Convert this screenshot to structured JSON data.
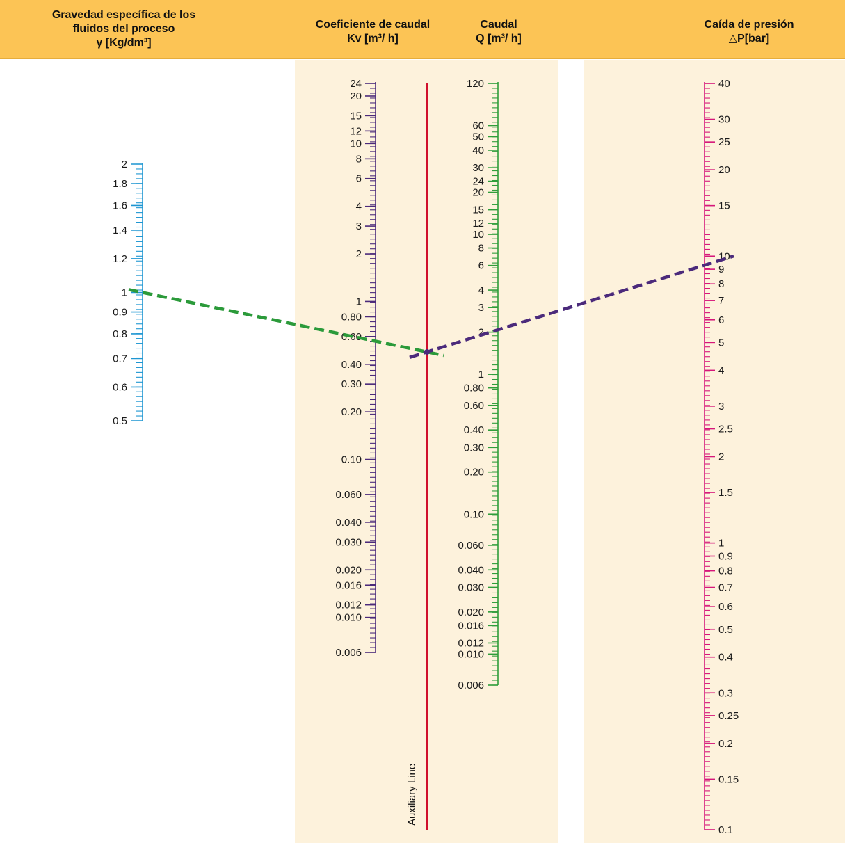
{
  "header": {
    "gravity": {
      "line1": "Gravedad específica de los",
      "line2": "fluidos del proceso",
      "line3": "γ [Kg/dm³]"
    },
    "kv": {
      "line1": "Coeficiente de caudal",
      "line2": "Kv [m³/ h]"
    },
    "flow": {
      "line1": "Caudal",
      "line2": "Q [m³/ h]"
    },
    "pressure": {
      "line1": "Caída de presión",
      "line2": "△P[bar]"
    }
  },
  "auxiliary_line_label": "Auxiliary Line",
  "colors": {
    "header_bg": "#fcc455",
    "panel_bg": "#fdf2dc",
    "gravity_scale": "#1e96d2",
    "kv_scale": "#4b2a7b",
    "flow_scale": "#2e9d3a",
    "pressure_scale": "#d6177a",
    "auxiliary_line": "#d0102c",
    "guide_green": "#2b9a3a",
    "guide_purple": "#4b2a7b"
  },
  "scales": {
    "gravity": {
      "range": [
        0.5,
        2
      ],
      "labels": [
        "2",
        "1.8",
        "1.6",
        "1.4",
        "1.2",
        "1",
        "0.9",
        "0.8",
        "0.7",
        "0.6",
        "0.5"
      ],
      "values": [
        2,
        1.8,
        1.6,
        1.4,
        1.2,
        1,
        0.9,
        0.8,
        0.7,
        0.6,
        0.5
      ]
    },
    "kv": {
      "range": [
        0.006,
        24
      ],
      "labels": [
        "24",
        "20",
        "15",
        "12",
        "10",
        "8",
        "6",
        "4",
        "3",
        "2",
        "1",
        "0.80",
        "0.60",
        "0.40",
        "0.30",
        "0.20",
        "0.10",
        "0.060",
        "0.040",
        "0.030",
        "0.020",
        "0.016",
        "0.012",
        "0.010",
        "0.006"
      ],
      "values": [
        24,
        20,
        15,
        12,
        10,
        8,
        6,
        4,
        3,
        2,
        1,
        0.8,
        0.6,
        0.4,
        0.3,
        0.2,
        0.1,
        0.06,
        0.04,
        0.03,
        0.02,
        0.016,
        0.012,
        0.01,
        0.006
      ]
    },
    "flow": {
      "range": [
        0.006,
        120
      ],
      "labels": [
        "120",
        "60",
        "50",
        "40",
        "30",
        "24",
        "20",
        "15",
        "12",
        "10",
        "8",
        "6",
        "4",
        "3",
        "2",
        "1",
        "0.80",
        "0.60",
        "0.40",
        "0.30",
        "0.20",
        "0.10",
        "0.060",
        "0.040",
        "0.030",
        "0.020",
        "0.016",
        "0.012",
        "0.010",
        "0.006"
      ],
      "values": [
        120,
        60,
        50,
        40,
        30,
        24,
        20,
        15,
        12,
        10,
        8,
        6,
        4,
        3,
        2,
        1,
        0.8,
        0.6,
        0.4,
        0.3,
        0.2,
        0.1,
        0.06,
        0.04,
        0.03,
        0.02,
        0.016,
        0.012,
        0.01,
        0.006
      ]
    },
    "pressure": {
      "range": [
        0.1,
        40
      ],
      "labels": [
        "40",
        "30",
        "25",
        "20",
        "15",
        "10",
        "9",
        "8",
        "7",
        "6",
        "5",
        "4",
        "3",
        "2.5",
        "2",
        "1.5",
        "1",
        "0.9",
        "0.8",
        "0.7",
        "0.6",
        "0.5",
        "0.4",
        "0.3",
        "0.25",
        "0.2",
        "0.15",
        "0.1"
      ],
      "values": [
        40,
        30,
        25,
        20,
        15,
        10,
        9,
        8,
        7,
        6,
        5,
        4,
        3,
        2.5,
        2,
        1.5,
        1,
        0.9,
        0.8,
        0.7,
        0.6,
        0.5,
        0.4,
        0.3,
        0.25,
        0.2,
        0.15,
        0.1
      ]
    }
  },
  "example": {
    "gravity_value": 1,
    "pressure_value": 9.3
  }
}
